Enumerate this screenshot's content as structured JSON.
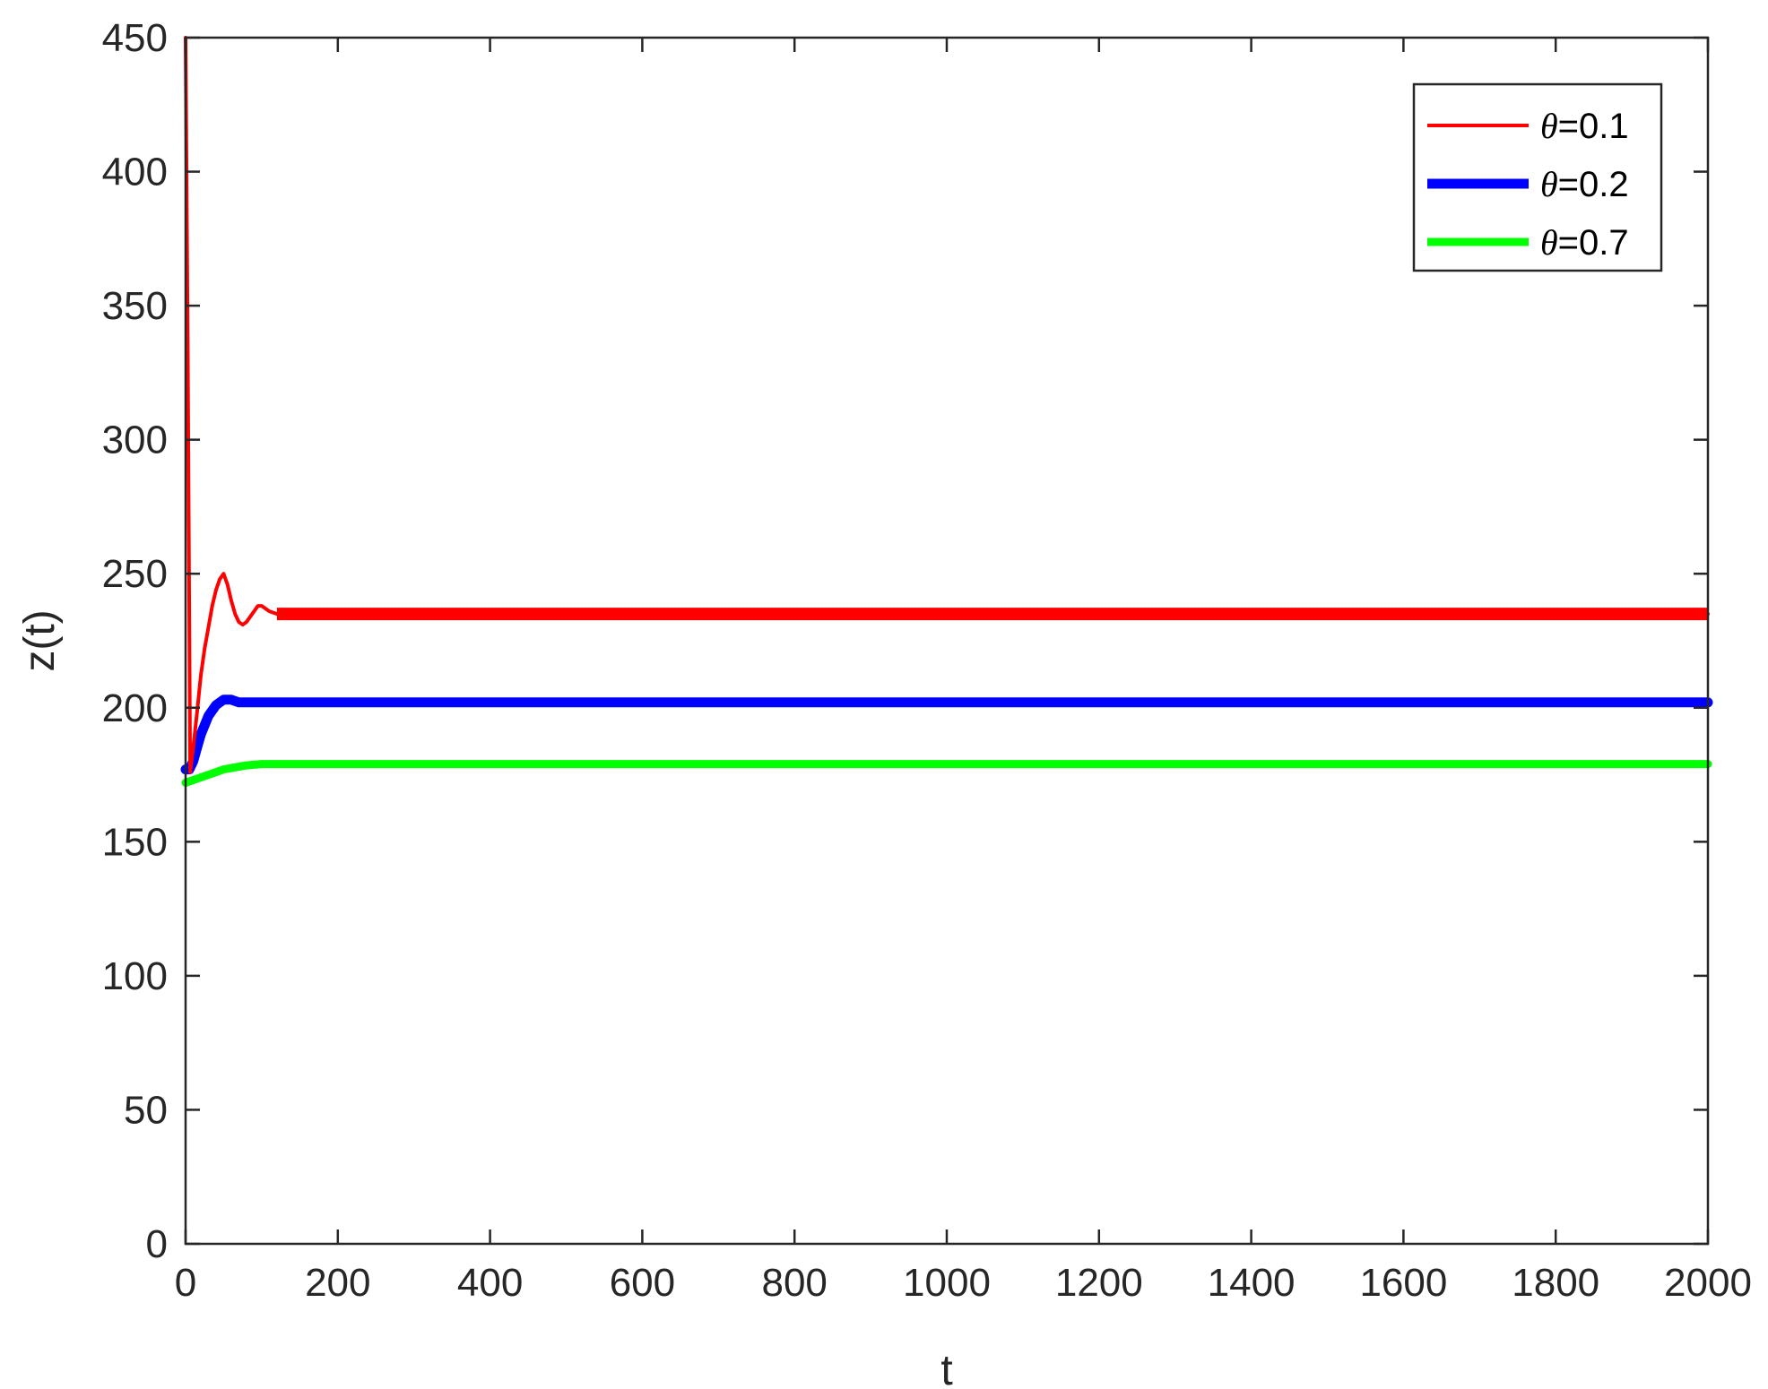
{
  "chart_data": {
    "type": "line",
    "title": "",
    "xlabel": "t",
    "ylabel": "z(t)",
    "xlim": [
      0,
      2000
    ],
    "ylim": [
      0,
      450
    ],
    "xticks": [
      "0",
      "200",
      "400",
      "600",
      "800",
      "1000",
      "1200",
      "1400",
      "1600",
      "1800",
      "2000"
    ],
    "yticks": [
      "0",
      "50",
      "100",
      "150",
      "200",
      "250",
      "300",
      "350",
      "400",
      "450"
    ],
    "grid": false,
    "legend_position": "top-right",
    "series": [
      {
        "name": "θ=0.1",
        "legend_symbol": "θ",
        "legend_value": "=0.1",
        "color": "#ff0000",
        "x": [
          0,
          3,
          6,
          10,
          15,
          20,
          25,
          30,
          35,
          40,
          45,
          50,
          55,
          60,
          65,
          70,
          75,
          80,
          85,
          90,
          95,
          100,
          110,
          120,
          140,
          160,
          200,
          400,
          800,
          1200,
          1600,
          2000
        ],
        "y": [
          450,
          330,
          176,
          185,
          198,
          212,
          222,
          230,
          238,
          244,
          248,
          250,
          246,
          240,
          235,
          232,
          231,
          232,
          234,
          236,
          238,
          238,
          236,
          235,
          236,
          235,
          235,
          235,
          235,
          235,
          235,
          235
        ]
      },
      {
        "name": "θ=0.2",
        "legend_symbol": "θ",
        "legend_value": "=0.2",
        "color": "#0000ff",
        "x": [
          0,
          5,
          10,
          15,
          20,
          30,
          40,
          50,
          60,
          70,
          80,
          100,
          150,
          200,
          500,
          1000,
          1500,
          2000
        ],
        "y": [
          177,
          177,
          180,
          185,
          190,
          197,
          201,
          203,
          203,
          202,
          202,
          202,
          202,
          202,
          202,
          202,
          202,
          202
        ]
      },
      {
        "name": "θ=0.7",
        "legend_symbol": "θ",
        "legend_value": "=0.7",
        "color": "#00ff00",
        "x": [
          0,
          10,
          20,
          30,
          40,
          50,
          60,
          70,
          80,
          100,
          120,
          150,
          200,
          500,
          1000,
          1500,
          2000
        ],
        "y": [
          172,
          173,
          174,
          175,
          176,
          177,
          177.5,
          178,
          178.5,
          179,
          179,
          179,
          179,
          179,
          179,
          179,
          179
        ]
      }
    ]
  }
}
